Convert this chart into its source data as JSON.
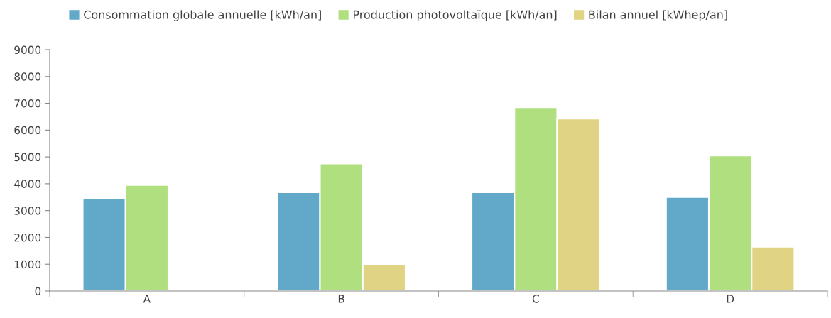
{
  "chart_data": {
    "type": "bar",
    "categories": [
      "A",
      "B",
      "C",
      "D"
    ],
    "series": [
      {
        "name": "Consommation globale annuelle [kWh/an]",
        "color": "#62a8c9",
        "values": [
          3450,
          3680,
          3680,
          3500
        ]
      },
      {
        "name": "Production photovoltaïque [kWh/an]",
        "color": "#b0df7f",
        "values": [
          3950,
          4750,
          6850,
          5050
        ]
      },
      {
        "name": "Bilan annuel [kWhep/an]",
        "color": "#e0d383",
        "values": [
          80,
          1000,
          6430,
          1650
        ]
      }
    ],
    "ylim": [
      0,
      9000
    ],
    "yticks": [
      0,
      1000,
      2000,
      3000,
      4000,
      5000,
      6000,
      7000,
      8000,
      9000
    ],
    "grid": false,
    "legend": "top"
  }
}
